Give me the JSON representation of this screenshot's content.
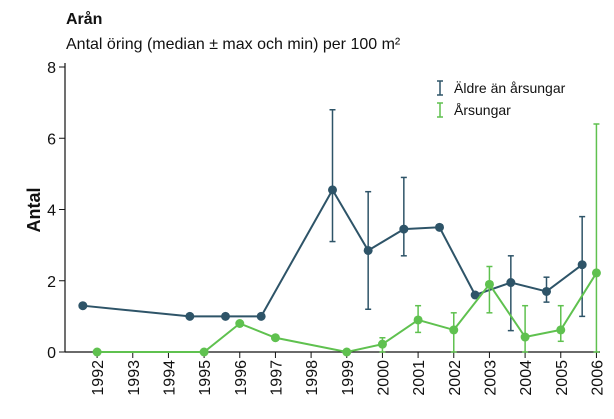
{
  "chart_data": {
    "type": "line",
    "title": "Arån",
    "subtitle": "Antal öring (median ± max och min) per 100 m²",
    "y_label": "Antal",
    "xlim": [
      1991.1,
      2006.1
    ],
    "xticks": [
      1992,
      1993,
      1994,
      1995,
      1996,
      1997,
      1998,
      1999,
      2000,
      2001,
      2002,
      2003,
      2004,
      2005,
      2006
    ],
    "ylim": [
      0,
      8
    ],
    "yticks": [
      0,
      2,
      4,
      6,
      8
    ],
    "legend": "top-right",
    "series": [
      {
        "name": "Äldre än årsungar",
        "color": "#2e5468",
        "x": [
          1992,
          1995,
          1996,
          1997,
          1999,
          2000,
          2001,
          2002,
          2003,
          2004,
          2005,
          2006
        ],
        "values": [
          1.3,
          1.0,
          1.0,
          1.0,
          4.55,
          2.85,
          3.45,
          3.5,
          1.6,
          1.95,
          1.7,
          2.45
        ],
        "max": [
          null,
          null,
          null,
          null,
          6.8,
          4.5,
          4.9,
          null,
          null,
          2.7,
          2.1,
          3.8
        ],
        "min": [
          null,
          null,
          null,
          null,
          3.1,
          1.2,
          2.7,
          null,
          null,
          0.6,
          1.4,
          1.0
        ]
      },
      {
        "name": "Årsungar",
        "color": "#5fc14f",
        "x": [
          1992,
          1995,
          1996,
          1997,
          1999,
          2000,
          2001,
          2002,
          2003,
          2004,
          2005,
          2006
        ],
        "values": [
          0,
          0,
          0.8,
          0.4,
          0,
          0.22,
          0.9,
          0.62,
          1.9,
          0.42,
          0.62,
          2.22
        ],
        "max": [
          null,
          null,
          null,
          null,
          null,
          0.4,
          1.3,
          1.1,
          2.4,
          1.3,
          1.3,
          6.4
        ],
        "min": [
          null,
          null,
          null,
          null,
          null,
          0,
          0.55,
          0,
          1.1,
          0,
          0.3,
          0
        ]
      }
    ]
  }
}
